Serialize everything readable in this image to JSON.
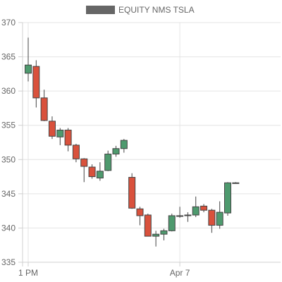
{
  "chart_data": {
    "type": "candlestick",
    "title": "",
    "legend": {
      "label": "EQUITY NMS TSLA",
      "color": "#666666",
      "position": "top"
    },
    "colors": {
      "up": "#4e9a6e",
      "down": "#d9513c",
      "wick": "#444444",
      "grid": "#e4e4e4"
    },
    "ylim": [
      335,
      370
    ],
    "yticks": [
      335,
      340,
      345,
      350,
      355,
      360,
      365,
      370
    ],
    "xticks": [
      {
        "index": 0,
        "label": "1 PM"
      },
      {
        "index": 19,
        "label": "Apr 7"
      }
    ],
    "grid": true,
    "candles": [
      {
        "o": 362.6,
        "h": 367.8,
        "l": 361.4,
        "c": 363.8
      },
      {
        "o": 363.6,
        "h": 364.5,
        "l": 357.6,
        "c": 359.0
      },
      {
        "o": 359.0,
        "h": 360.2,
        "l": 355.6,
        "c": 355.7
      },
      {
        "o": 355.6,
        "h": 356.3,
        "l": 353.0,
        "c": 353.4
      },
      {
        "o": 353.3,
        "h": 354.6,
        "l": 352.1,
        "c": 354.3
      },
      {
        "o": 354.3,
        "h": 354.6,
        "l": 351.2,
        "c": 352.1
      },
      {
        "o": 352.1,
        "h": 352.3,
        "l": 349.6,
        "c": 350.1
      },
      {
        "o": 350.1,
        "h": 350.2,
        "l": 346.7,
        "c": 349.0
      },
      {
        "o": 348.9,
        "h": 349.3,
        "l": 347.2,
        "c": 347.5
      },
      {
        "o": 347.3,
        "h": 349.6,
        "l": 346.9,
        "c": 348.3
      },
      {
        "o": 348.4,
        "h": 351.3,
        "l": 348.3,
        "c": 350.8
      },
      {
        "o": 350.8,
        "h": 352.0,
        "l": 350.4,
        "c": 351.6
      },
      {
        "o": 351.6,
        "h": 353.0,
        "l": 351.0,
        "c": 352.8
      },
      {
        "o": 347.4,
        "h": 348.0,
        "l": 342.8,
        "c": 342.9
      },
      {
        "o": 342.8,
        "h": 343.1,
        "l": 340.4,
        "c": 341.8
      },
      {
        "o": 341.9,
        "h": 342.1,
        "l": 338.8,
        "c": 338.8
      },
      {
        "o": 338.8,
        "h": 339.6,
        "l": 337.3,
        "c": 339.1
      },
      {
        "o": 339.1,
        "h": 339.9,
        "l": 338.2,
        "c": 339.6
      },
      {
        "o": 339.6,
        "h": 342.1,
        "l": 339.5,
        "c": 341.8
      },
      {
        "o": 341.8,
        "h": 343.1,
        "l": 341.5,
        "c": 341.7
      },
      {
        "o": 341.8,
        "h": 342.3,
        "l": 340.9,
        "c": 341.9
      },
      {
        "o": 341.9,
        "h": 344.6,
        "l": 341.6,
        "c": 343.1
      },
      {
        "o": 343.2,
        "h": 343.5,
        "l": 342.3,
        "c": 342.6
      },
      {
        "o": 342.6,
        "h": 342.8,
        "l": 339.3,
        "c": 340.4
      },
      {
        "o": 340.4,
        "h": 343.9,
        "l": 339.9,
        "c": 342.3
      },
      {
        "o": 342.2,
        "h": 346.7,
        "l": 341.8,
        "c": 346.6
      },
      {
        "o": 346.6,
        "h": 346.7,
        "l": 346.5,
        "c": 346.6
      }
    ]
  }
}
